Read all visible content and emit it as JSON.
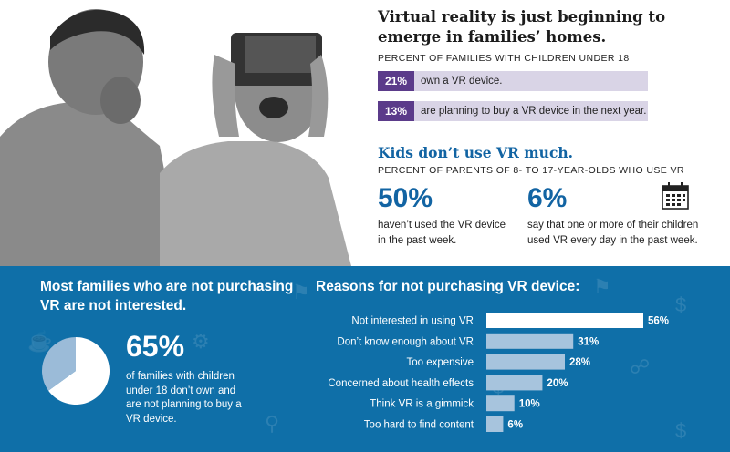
{
  "top": {
    "title": "Virtual reality is just beginning to emerge in families’ homes.",
    "subtitle": "PERCENT OF FAMILIES WITH CHILDREN UNDER 18",
    "stats": [
      {
        "pct": "21%",
        "text": "own a VR device."
      },
      {
        "pct": "13%",
        "text": "are planning to buy a VR device in the next year."
      }
    ],
    "kids_title": "Kids don’t use VR much.",
    "kids_subtitle": "PERCENT OF PARENTS OF 8- TO 17-YEAR-OLDS WHO USE VR",
    "kids_stats": [
      {
        "pct": "50%",
        "text": "haven’t used the VR device in the past week."
      },
      {
        "pct": "6%",
        "text": "say that one or more of their children used VR every day in the past week."
      }
    ]
  },
  "bottom": {
    "left_title": "Most families who are not purchasing VR are not interested.",
    "pie_pct": "65%",
    "pie_desc": "of families with children under 18 don’t own and are not planning to buy a VR device.",
    "reasons_title": "Reasons for not purchasing VR device:"
  },
  "colors": {
    "purple": "#5b3b8a",
    "lavender": "#d9d4e6",
    "blue": "#0f6fa8",
    "lightblue": "#a7c4dd",
    "pie_dark": "#9bbbd8"
  },
  "icons": [
    "calendar-icon",
    "photo-father-child-vr-headset"
  ],
  "chart_data": [
    {
      "type": "pie",
      "values": [
        65,
        35
      ],
      "labels": [
        "65%",
        ""
      ]
    },
    {
      "type": "bar",
      "title": "Reasons for not purchasing VR device:",
      "orientation": "horizontal",
      "categories": [
        "Not interested in using VR",
        "Don’t know enough about VR",
        "Too expensive",
        "Concerned about health effects",
        "Think VR is a gimmick",
        "Too hard to find content"
      ],
      "values": [
        56,
        31,
        28,
        20,
        10,
        6
      ],
      "value_labels": [
        "56%",
        "31%",
        "28%",
        "20%",
        "10%",
        "6%"
      ],
      "xlim": [
        0,
        56
      ]
    }
  ]
}
